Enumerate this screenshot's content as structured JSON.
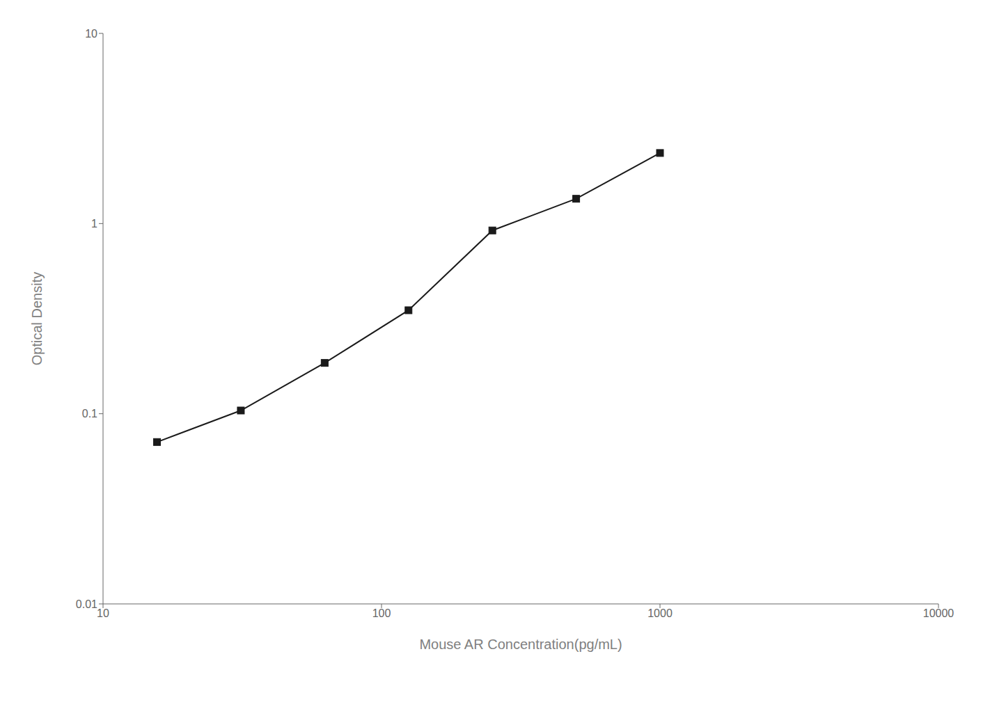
{
  "chart_data": {
    "type": "line",
    "x": [
      15.625,
      31.25,
      62.5,
      125,
      250,
      500,
      1000
    ],
    "values": [
      0.071,
      0.104,
      0.185,
      0.35,
      0.92,
      1.35,
      2.35
    ],
    "xlabel": "Mouse AR Concentration(pg/mL)",
    "ylabel": "Optical Density",
    "xlim": [
      10,
      10000
    ],
    "ylim": [
      0.01,
      10
    ],
    "xticks": [
      10,
      100,
      1000,
      10000
    ],
    "yticks": [
      0.01,
      0.1,
      1,
      10
    ],
    "log": true,
    "color": "#1a1a1a",
    "marker": "square"
  }
}
